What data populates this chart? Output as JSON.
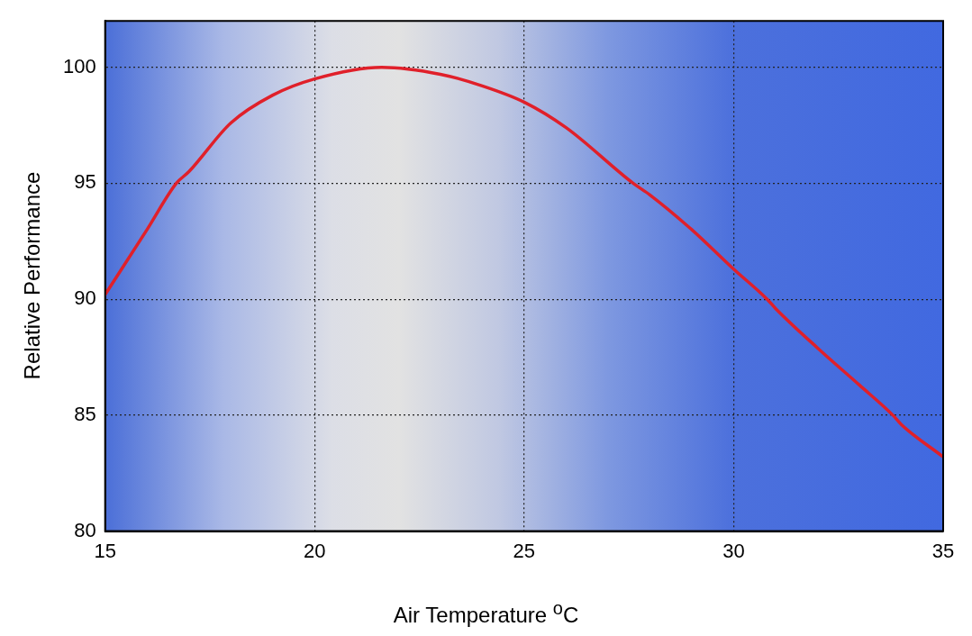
{
  "chart_data": {
    "type": "line",
    "xlabel": "Air Temperature $^{o}$C",
    "ylabel": "Relative Performance",
    "xlim": [
      15,
      35
    ],
    "ylim": [
      80,
      102
    ],
    "xticks": [
      15,
      20,
      25,
      30,
      35
    ],
    "yticks": [
      80,
      85,
      90,
      95,
      100
    ],
    "grid": true,
    "legend": false,
    "marker": "none",
    "line_style": "solid",
    "series": [
      {
        "color": "#e0202a",
        "x": [
          15,
          16,
          16.7,
          17,
          18,
          19,
          20,
          21.6,
          23,
          24,
          25,
          26,
          27.6,
          28,
          29,
          30,
          30.8,
          31,
          32,
          33,
          33.8,
          34,
          35
        ],
        "values": [
          90.2,
          93.0,
          95.0,
          95.5,
          97.6,
          98.8,
          99.5,
          100,
          99.7,
          99.2,
          98.5,
          97.4,
          95.0,
          94.5,
          93.0,
          91.3,
          90.0,
          89.6,
          87.9,
          86.3,
          85.0,
          84.6,
          83.2
        ]
      }
    ]
  }
}
